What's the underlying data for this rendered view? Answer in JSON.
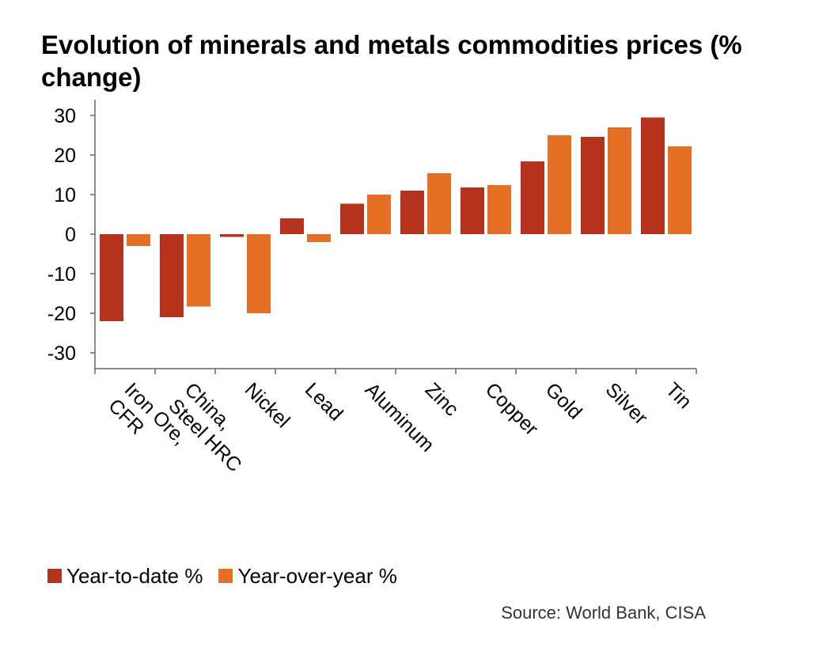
{
  "chart_data": {
    "type": "bar",
    "title": "Evolution of minerals and metals commodities prices (% change)",
    "categories": [
      "Iron Ore, CFR",
      "China, Steel HRC",
      "Nickel",
      "Lead",
      "Aluminum",
      "Zinc",
      "Copper",
      "Gold",
      "Silver",
      "Tin"
    ],
    "series": [
      {
        "name": "Year-to-date %",
        "color": "#b5321c",
        "values": [
          -22,
          -21,
          -0.7,
          4,
          7.7,
          11,
          11.8,
          18.4,
          24.6,
          29.5
        ]
      },
      {
        "name": "Year-over-year %",
        "color": "#e56f24",
        "values": [
          -3,
          -18.3,
          -20,
          -2,
          10,
          15.4,
          12.4,
          25,
          27,
          22.2
        ]
      }
    ],
    "ylim": [
      -34,
      34
    ],
    "yticks": [
      30,
      20,
      10,
      0,
      -10,
      -20,
      -30
    ],
    "grid": false,
    "legend": "bottom-left",
    "source": "Source: World Bank, CISA"
  }
}
